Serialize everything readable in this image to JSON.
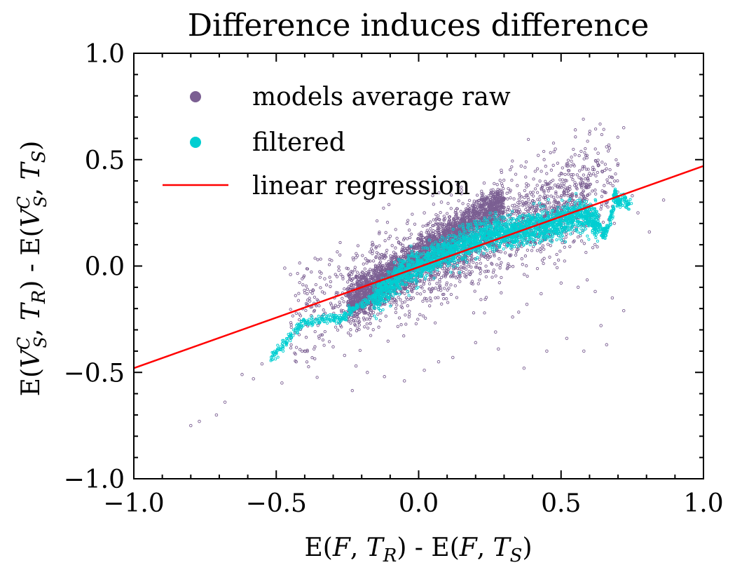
{
  "chart_data": {
    "type": "scatter",
    "title": "Difference induces difference",
    "xlabel": "E(F, T_R) - E(F, T_S)",
    "ylabel": "E(V_S^C, T_R) - E(V_S^C, T_S)",
    "xlim": [
      -1.0,
      1.0
    ],
    "ylim": [
      -1.0,
      1.0
    ],
    "x_ticks": [
      "−1.0",
      "−0.5",
      "0.0",
      "0.5",
      "1.0"
    ],
    "y_ticks": [
      "−1.0",
      "−0.5",
      "0.0",
      "0.5",
      "1.0"
    ],
    "grid": false,
    "legend_position": "top-left",
    "series": [
      {
        "name": "models average raw",
        "kind": "scatter",
        "color": "#7b5f92",
        "points": [
          [
            -0.8,
            -0.75
          ],
          [
            -0.77,
            -0.73
          ],
          [
            -0.71,
            -0.7
          ],
          [
            -0.68,
            -0.64
          ],
          [
            -0.62,
            -0.51
          ],
          [
            -0.58,
            -0.53
          ],
          [
            -0.55,
            -0.46
          ],
          [
            -0.48,
            -0.55
          ],
          [
            -0.43,
            -0.45
          ],
          [
            -0.4,
            -0.4
          ],
          [
            -0.47,
            -0.01
          ],
          [
            -0.45,
            -0.04
          ],
          [
            -0.35,
            -0.33
          ],
          [
            -0.3,
            -0.38
          ],
          [
            -0.26,
            -0.42
          ],
          [
            -0.22,
            -0.47
          ],
          [
            -0.18,
            -0.5
          ],
          [
            -0.12,
            -0.52
          ],
          [
            -0.05,
            -0.54
          ],
          [
            0.02,
            -0.49
          ],
          [
            0.07,
            -0.45
          ],
          [
            0.12,
            -0.43
          ],
          [
            0.2,
            -0.36
          ],
          [
            0.27,
            -0.31
          ],
          [
            0.33,
            -0.24
          ],
          [
            0.38,
            -0.18
          ],
          [
            0.43,
            -0.13
          ],
          [
            0.5,
            -0.08
          ],
          [
            0.56,
            -0.1
          ],
          [
            0.62,
            -0.12
          ],
          [
            0.68,
            -0.15
          ],
          [
            0.72,
            -0.21
          ],
          [
            0.77,
            0.25
          ],
          [
            0.81,
            0.16
          ],
          [
            0.75,
            0.33
          ],
          [
            0.7,
            0.48
          ],
          [
            0.66,
            0.56
          ],
          [
            0.6,
            0.62
          ],
          [
            0.55,
            0.64
          ],
          [
            0.48,
            0.55
          ],
          [
            0.42,
            0.52
          ],
          [
            0.36,
            0.47
          ],
          [
            0.29,
            0.45
          ],
          [
            0.23,
            0.39
          ],
          [
            0.15,
            0.34
          ],
          [
            0.08,
            0.3
          ],
          [
            0.02,
            0.25
          ],
          [
            -0.04,
            0.2
          ],
          [
            -0.1,
            0.14
          ],
          [
            -0.16,
            0.1
          ],
          [
            -0.22,
            0.04
          ],
          [
            -0.28,
            -0.02
          ],
          [
            -0.33,
            -0.06
          ],
          [
            -0.38,
            -0.12
          ],
          [
            0.72,
            0.65
          ],
          [
            0.63,
            0.53
          ],
          [
            0.52,
            0.48
          ],
          [
            0.46,
            0.39
          ],
          [
            0.86,
            0.31
          ],
          [
            0.45,
            -0.4
          ],
          [
            0.52,
            -0.34
          ],
          [
            0.64,
            -0.28
          ],
          [
            0.58,
            -0.4
          ],
          [
            0.66,
            -0.37
          ],
          [
            0.28,
            -0.39
          ],
          [
            0.37,
            -0.48
          ]
        ],
        "clusters": [
          {
            "x_range": [
              -0.25,
              0.3
            ],
            "slope": 0.9,
            "intercept": 0.04,
            "spread": 0.09,
            "count": 2600
          },
          {
            "x_range": [
              -0.25,
              0.6
            ],
            "slope": 0.55,
            "intercept": -0.01,
            "spread": 0.16,
            "count": 1400
          },
          {
            "x_range": [
              -0.45,
              0.7
            ],
            "slope": 0.6,
            "intercept": 0.0,
            "spread": 0.26,
            "count": 900
          }
        ]
      },
      {
        "name": "filtered",
        "kind": "scatter",
        "color": "#00ced1",
        "curve": [
          [
            -0.52,
            -0.43
          ],
          [
            -0.48,
            -0.38
          ],
          [
            -0.44,
            -0.31
          ],
          [
            -0.4,
            -0.27
          ],
          [
            -0.35,
            -0.25
          ],
          [
            -0.3,
            -0.24
          ],
          [
            -0.27,
            -0.25
          ],
          [
            -0.24,
            -0.21
          ],
          [
            -0.2,
            -0.18
          ],
          [
            -0.16,
            -0.15
          ],
          [
            -0.12,
            -0.11
          ],
          [
            -0.08,
            -0.06
          ],
          [
            -0.04,
            -0.03
          ],
          [
            0.0,
            0.0
          ],
          [
            0.04,
            0.03
          ],
          [
            0.08,
            0.05
          ],
          [
            0.12,
            0.08
          ],
          [
            0.16,
            0.1
          ],
          [
            0.2,
            0.13
          ],
          [
            0.24,
            0.15
          ],
          [
            0.28,
            0.16
          ],
          [
            0.32,
            0.16
          ],
          [
            0.36,
            0.17
          ],
          [
            0.4,
            0.18
          ],
          [
            0.44,
            0.19
          ],
          [
            0.48,
            0.2
          ],
          [
            0.52,
            0.22
          ],
          [
            0.56,
            0.24
          ],
          [
            0.6,
            0.23
          ],
          [
            0.63,
            0.2
          ],
          [
            0.65,
            0.14
          ],
          [
            0.66,
            0.17
          ],
          [
            0.68,
            0.25
          ],
          [
            0.69,
            0.35
          ],
          [
            0.7,
            0.3
          ],
          [
            0.72,
            0.31
          ],
          [
            0.74,
            0.29
          ]
        ]
      },
      {
        "name": "linear regression",
        "kind": "line",
        "color": "#ff0000",
        "slope": 0.475,
        "intercept": -0.005
      }
    ]
  }
}
